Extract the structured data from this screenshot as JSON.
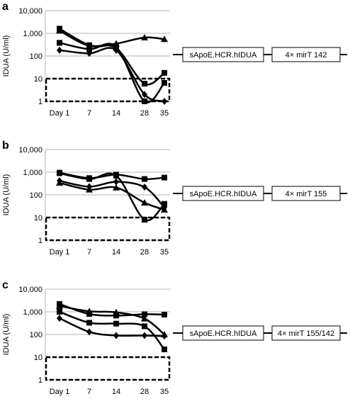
{
  "chart_data": [
    {
      "type": "line",
      "panel_label": "a",
      "ylabel": "IDUA (U/ml)",
      "yscale": "log",
      "ylim": [
        1,
        10000
      ],
      "yticks": [
        "1",
        "10",
        "100",
        "1,000",
        "10,000"
      ],
      "categories": [
        "Day 1",
        "7",
        "14",
        "28",
        "35"
      ],
      "grid": "horizontal",
      "construct": {
        "promoter": "sApoE.HCR.hIDUA",
        "target": "4× mirT 142"
      },
      "dashed_box_range": [
        1,
        10
      ],
      "series": [
        {
          "marker": "triangle",
          "values": [
            1300,
            280,
            350,
            650,
            550
          ]
        },
        {
          "marker": "square",
          "values": [
            1600,
            300,
            220,
            6,
            18
          ]
        },
        {
          "marker": "square",
          "values": [
            380,
            200,
            250,
            1,
            6.5
          ]
        },
        {
          "marker": "diamond",
          "values": [
            180,
            130,
            180,
            2,
            1
          ]
        }
      ]
    },
    {
      "type": "line",
      "panel_label": "b",
      "ylabel": "IDUA (U/ml)",
      "yscale": "log",
      "ylim": [
        1,
        10000
      ],
      "yticks": [
        "1",
        "10",
        "100",
        "1,000",
        "10,000"
      ],
      "categories": [
        "Day 1",
        "7",
        "14",
        "28",
        "35"
      ],
      "grid": "horizontal",
      "construct": {
        "promoter": "sApoE.HCR.hIDUA",
        "target": "4× mirT 155"
      },
      "dashed_box_range": [
        1,
        10
      ],
      "series": [
        {
          "marker": "square",
          "values": [
            950,
            550,
            780,
            500,
            580
          ]
        },
        {
          "marker": "square",
          "values": [
            900,
            500,
            700,
            8,
            40
          ]
        },
        {
          "marker": "diamond",
          "values": [
            420,
            230,
            380,
            220,
            28
          ]
        },
        {
          "marker": "triangle",
          "values": [
            340,
            170,
            210,
            45,
            22
          ]
        }
      ]
    },
    {
      "type": "line",
      "panel_label": "c",
      "ylabel": "IDUA (U/ml)",
      "yscale": "log",
      "ylim": [
        1,
        10000
      ],
      "yticks": [
        "1",
        "10",
        "100",
        "1,000",
        "10,000"
      ],
      "categories": [
        "Day 1",
        "7",
        "14",
        "28",
        "35"
      ],
      "grid": "horizontal",
      "construct": {
        "promoter": "sApoE.HCR.hIDUA",
        "target": "4× mirT 155/142"
      },
      "dashed_box_range": [
        1,
        10
      ],
      "series": [
        {
          "marker": "triangle",
          "values": [
            1800,
            1050,
            950,
            500,
            100
          ]
        },
        {
          "marker": "square",
          "values": [
            2200,
            800,
            680,
            780,
            750
          ]
        },
        {
          "marker": "square",
          "values": [
            1000,
            330,
            300,
            230,
            22
          ]
        },
        {
          "marker": "diamond",
          "values": [
            520,
            130,
            90,
            90,
            85
          ]
        }
      ]
    }
  ]
}
